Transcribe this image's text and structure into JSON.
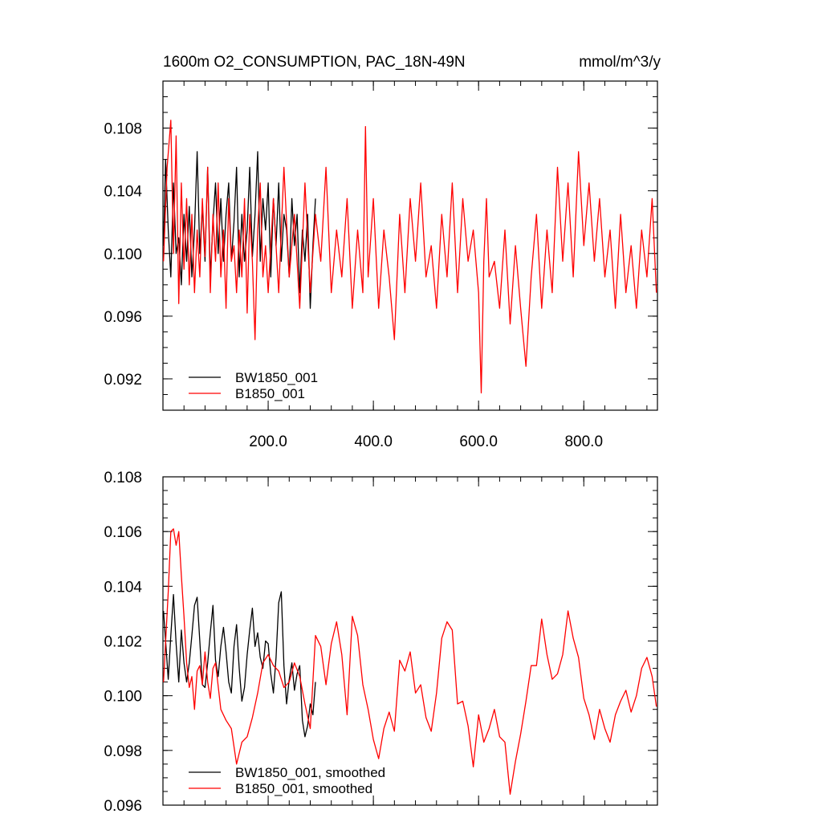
{
  "chart_data": [
    {
      "type": "line",
      "title": "1600m O2_CONSUMPTION, PAC_18N-49N",
      "units": "mmol/m^3/y",
      "xlim": [
        0,
        940
      ],
      "ylim": [
        0.09,
        0.111
      ],
      "xticks": [
        200,
        400,
        600,
        800
      ],
      "xtick_labels": [
        "200.0",
        "400.0",
        "600.0",
        "800.0"
      ],
      "yticks": [
        0.092,
        0.096,
        0.1,
        0.104,
        0.108
      ],
      "ytick_labels": [
        "0.092",
        "0.096",
        "0.100",
        "0.104",
        "0.108"
      ],
      "legend_position": "bottom-left",
      "series": [
        {
          "name": "BW1850_001",
          "color": "#000000",
          "x": [
            1,
            5,
            10,
            15,
            20,
            25,
            30,
            35,
            40,
            45,
            50,
            55,
            60,
            65,
            70,
            75,
            80,
            85,
            90,
            95,
            100,
            105,
            110,
            115,
            120,
            125,
            130,
            135,
            140,
            145,
            150,
            155,
            160,
            165,
            170,
            175,
            180,
            185,
            190,
            195,
            200,
            205,
            210,
            215,
            220,
            225,
            230,
            235,
            240,
            245,
            250,
            255,
            260,
            265,
            270,
            275,
            280,
            285,
            290
          ],
          "values": [
            0.1005,
            0.106,
            0.1015,
            0.0985,
            0.1045,
            0.1,
            0.101,
            0.098,
            0.1025,
            0.0995,
            0.103,
            0.0985,
            0.1015,
            0.1065,
            0.1,
            0.103,
            0.0995,
            0.1055,
            0.0985,
            0.102,
            0.1045,
            0.1,
            0.1035,
            0.0995,
            0.1025,
            0.1045,
            0.0995,
            0.102,
            0.1055,
            0.0985,
            0.1025,
            0.0995,
            0.1015,
            0.1055,
            0.0998,
            0.1025,
            0.1065,
            0.0995,
            0.1035,
            0.1015,
            0.1045,
            0.0985,
            0.1035,
            0.1005,
            0.1045,
            0.0995,
            0.1025,
            0.1015,
            0.0985,
            0.1035,
            0.1005,
            0.1025,
            0.0975,
            0.1015,
            0.0995,
            0.1025,
            0.0965,
            0.1005,
            0.1035
          ]
        },
        {
          "name": "B1850_001",
          "color": "#ff0000",
          "x": [
            1,
            8,
            15,
            20,
            25,
            30,
            35,
            40,
            45,
            50,
            55,
            60,
            65,
            70,
            75,
            80,
            85,
            90,
            95,
            100,
            105,
            110,
            115,
            120,
            125,
            130,
            135,
            140,
            145,
            150,
            155,
            160,
            165,
            170,
            175,
            180,
            185,
            190,
            195,
            200,
            210,
            220,
            230,
            240,
            250,
            260,
            270,
            280,
            290,
            300,
            310,
            320,
            330,
            340,
            350,
            360,
            370,
            380,
            385,
            390,
            400,
            410,
            420,
            430,
            440,
            450,
            460,
            470,
            480,
            490,
            500,
            510,
            520,
            530,
            540,
            550,
            560,
            570,
            580,
            590,
            600,
            605,
            610,
            615,
            620,
            630,
            640,
            650,
            660,
            670,
            680,
            690,
            700,
            710,
            720,
            730,
            740,
            750,
            760,
            770,
            780,
            790,
            800,
            810,
            820,
            830,
            840,
            850,
            860,
            870,
            880,
            890,
            900,
            910,
            920,
            930,
            938
          ],
          "values": [
            0.0995,
            0.1055,
            0.1085,
            0.1,
            0.1075,
            0.0968,
            0.1045,
            0.099,
            0.1035,
            0.098,
            0.1025,
            0.0975,
            0.1015,
            0.0985,
            0.1035,
            0.0998,
            0.1055,
            0.0975,
            0.1025,
            0.0995,
            0.1045,
            0.0985,
            0.1015,
            0.0965,
            0.1035,
            0.0995,
            0.1005,
            0.0975,
            0.1015,
            0.0985,
            0.1035,
            0.0962,
            0.1025,
            0.0995,
            0.0945,
            0.1015,
            0.1045,
            0.0985,
            0.1005,
            0.0975,
            0.1035,
            0.0975,
            0.1055,
            0.0985,
            0.1025,
            0.0965,
            0.1045,
            0.0975,
            0.1025,
            0.0995,
            0.1055,
            0.0975,
            0.1015,
            0.0985,
            0.1035,
            0.0965,
            0.1015,
            0.0975,
            0.1081,
            0.0985,
            0.1035,
            0.0965,
            0.1015,
            0.0985,
            0.0945,
            0.1025,
            0.0975,
            0.1035,
            0.0995,
            0.1045,
            0.0985,
            0.1005,
            0.0965,
            0.1025,
            0.0985,
            0.1045,
            0.0975,
            0.1035,
            0.0995,
            0.1015,
            0.0975,
            0.0911,
            0.0995,
            0.1035,
            0.0985,
            0.0995,
            0.0965,
            0.1015,
            0.0955,
            0.1005,
            0.0965,
            0.0928,
            0.0985,
            0.1025,
            0.0965,
            0.1015,
            0.0975,
            0.1055,
            0.0995,
            0.1045,
            0.0985,
            0.1065,
            0.1005,
            0.1045,
            0.0995,
            0.1035,
            0.0985,
            0.1015,
            0.0965,
            0.1025,
            0.0975,
            0.1005,
            0.0965,
            0.1015,
            0.0985,
            0.1035,
            0.0975
          ]
        }
      ]
    },
    {
      "type": "line",
      "xlim": [
        0,
        940
      ],
      "ylim": [
        0.096,
        0.108
      ],
      "xticks": [
        200,
        400,
        600,
        800
      ],
      "yticks": [
        0.096,
        0.098,
        0.1,
        0.102,
        0.104,
        0.106,
        0.108
      ],
      "ytick_labels": [
        "0.096",
        "0.098",
        "0.100",
        "0.102",
        "0.104",
        "0.106",
        "0.108"
      ],
      "legend_position": "bottom-left",
      "series": [
        {
          "name": "BW1850_001, smoothed",
          "color": "#000000",
          "x": [
            1,
            10,
            15,
            20,
            25,
            30,
            35,
            40,
            45,
            50,
            55,
            60,
            65,
            70,
            75,
            80,
            85,
            90,
            95,
            100,
            105,
            110,
            115,
            120,
            125,
            130,
            135,
            140,
            145,
            150,
            155,
            160,
            165,
            170,
            175,
            180,
            185,
            190,
            195,
            200,
            205,
            210,
            215,
            220,
            225,
            230,
            235,
            240,
            245,
            250,
            255,
            260,
            265,
            270,
            275,
            280,
            285,
            290
          ],
          "values": [
            0.1031,
            0.1006,
            0.1022,
            0.1037,
            0.1019,
            0.1005,
            0.1024,
            0.1012,
            0.1005,
            0.1012,
            0.1022,
            0.1033,
            0.1036,
            0.102,
            0.1004,
            0.1003,
            0.1012,
            0.1023,
            0.1033,
            0.1013,
            0.1007,
            0.1018,
            0.1025,
            0.1016,
            0.1005,
            0.1001,
            0.1018,
            0.1026,
            0.101,
            0.0998,
            0.1003,
            0.1015,
            0.1024,
            0.1032,
            0.1018,
            0.1023,
            0.1014,
            0.101,
            0.102,
            0.1019,
            0.1008,
            0.1001,
            0.1014,
            0.1034,
            0.1038,
            0.1011,
            0.0997,
            0.1006,
            0.1012,
            0.1002,
            0.1008,
            0.1011,
            0.0991,
            0.0985,
            0.0989,
            0.0997,
            0.0993,
            0.1005
          ]
        },
        {
          "name": "B1850_001, smoothed",
          "color": "#ff0000",
          "x": [
            1,
            10,
            15,
            20,
            25,
            30,
            35,
            40,
            45,
            50,
            55,
            60,
            65,
            70,
            75,
            80,
            85,
            90,
            95,
            100,
            110,
            120,
            130,
            140,
            150,
            160,
            170,
            180,
            190,
            200,
            210,
            220,
            230,
            240,
            250,
            260,
            270,
            280,
            290,
            300,
            310,
            320,
            330,
            340,
            350,
            360,
            370,
            380,
            390,
            400,
            410,
            420,
            430,
            440,
            450,
            460,
            470,
            480,
            490,
            500,
            510,
            520,
            530,
            540,
            550,
            560,
            570,
            580,
            590,
            600,
            610,
            620,
            630,
            640,
            650,
            660,
            670,
            680,
            690,
            700,
            710,
            720,
            730,
            740,
            750,
            760,
            770,
            780,
            790,
            800,
            810,
            820,
            830,
            840,
            850,
            860,
            870,
            880,
            890,
            900,
            910,
            920,
            930,
            938
          ],
          "values": [
            0.1005,
            0.1038,
            0.106,
            0.1061,
            0.1055,
            0.106,
            0.1044,
            0.1029,
            0.1012,
            0.1003,
            0.1007,
            0.0995,
            0.1009,
            0.1011,
            0.1004,
            0.1016,
            0.1005,
            0.0999,
            0.101,
            0.1012,
            0.0995,
            0.0991,
            0.0988,
            0.0975,
            0.0983,
            0.0985,
            0.0992,
            0.1001,
            0.1012,
            0.1015,
            0.1011,
            0.1009,
            0.1003,
            0.1005,
            0.1012,
            0.1007,
            0.0997,
            0.0988,
            0.1022,
            0.1018,
            0.1004,
            0.1019,
            0.1027,
            0.1015,
            0.0993,
            0.1029,
            0.1022,
            0.1004,
            0.0995,
            0.0984,
            0.0977,
            0.0988,
            0.0994,
            0.0987,
            0.1013,
            0.1009,
            0.1016,
            0.1001,
            0.1004,
            0.0992,
            0.0987,
            0.1001,
            0.1021,
            0.1027,
            0.1024,
            0.0997,
            0.0998,
            0.0989,
            0.0974,
            0.0993,
            0.0983,
            0.0988,
            0.0995,
            0.0985,
            0.0983,
            0.0964,
            0.0976,
            0.0986,
            0.0998,
            0.1011,
            0.1011,
            0.1028,
            0.1015,
            0.1006,
            0.1008,
            0.1015,
            0.1031,
            0.1021,
            0.1014,
            0.0999,
            0.0993,
            0.0984,
            0.0995,
            0.0988,
            0.0983,
            0.0993,
            0.0998,
            0.1002,
            0.0994,
            0.1,
            0.101,
            0.1014,
            0.1007,
            0.0996
          ]
        }
      ]
    }
  ]
}
